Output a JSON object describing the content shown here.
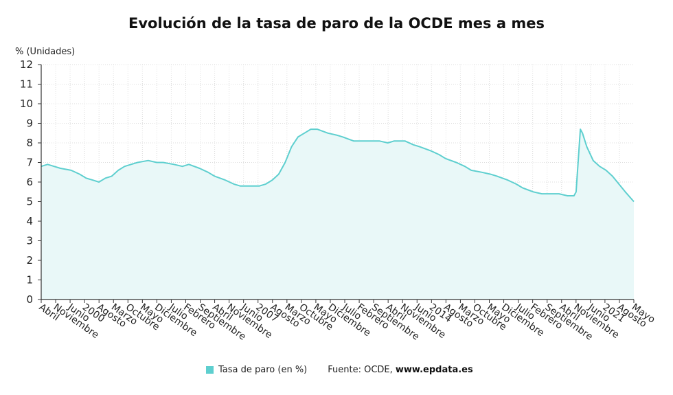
{
  "header": {
    "title": "Evolución de la tasa de paro de la OCDE mes a mes",
    "unit": "% (Unidades)"
  },
  "legend": {
    "series_label": "Tasa de paro (en %)",
    "source_prefix": "Fuente: OCDE, ",
    "source_site": "www.epdata.es"
  },
  "colors": {
    "line": "#5ecfcf",
    "area": "#e9f8f8",
    "grid": "#dddddd",
    "axis": "#333333"
  },
  "chart_data": {
    "type": "area",
    "title": "Evolución de la tasa de paro de la OCDE mes a mes",
    "ylabel": "% (Unidades)",
    "ylim": [
      0,
      12
    ],
    "yticks": [
      0,
      1,
      2,
      3,
      4,
      5,
      6,
      7,
      8,
      9,
      10,
      11,
      12
    ],
    "xlim": [
      "1999-04",
      "2022-05"
    ],
    "x_tick_labels": [
      "Abril",
      "Noviembre",
      "Junio",
      "2000",
      "Agosto",
      "Marzo",
      "Octubre",
      "Mayo",
      "Diciembre",
      "Julio",
      "Febrero",
      "Septiembre",
      "Abril",
      "Noviembre",
      "Junio",
      "2007",
      "Agosto",
      "Marzo",
      "Octubre",
      "Mayo",
      "Diciembre",
      "Julio",
      "Febrero",
      "Septiembre",
      "Abril",
      "Noviembre",
      "Junio",
      "2014",
      "Agosto",
      "Marzo",
      "Octubre",
      "Mayo",
      "Diciembre",
      "Julio",
      "Febrero",
      "Septiembre",
      "Abril",
      "Noviembre",
      "Junio",
      "2021",
      "Agosto",
      "Mayo"
    ],
    "grid": true,
    "legend_position": "bottom",
    "series": [
      {
        "name": "Tasa de paro (en %)",
        "points": [
          [
            "1999-04",
            6.8
          ],
          [
            "1999-07",
            6.9
          ],
          [
            "1999-10",
            6.8
          ],
          [
            "2000-01",
            6.7
          ],
          [
            "2000-06",
            6.6
          ],
          [
            "2000-10",
            6.4
          ],
          [
            "2001-01",
            6.2
          ],
          [
            "2001-04",
            6.1
          ],
          [
            "2001-07",
            6.0
          ],
          [
            "2001-10",
            6.2
          ],
          [
            "2002-01",
            6.3
          ],
          [
            "2002-04",
            6.6
          ],
          [
            "2002-07",
            6.8
          ],
          [
            "2002-10",
            6.9
          ],
          [
            "2003-01",
            7.0
          ],
          [
            "2003-06",
            7.1
          ],
          [
            "2003-10",
            7.0
          ],
          [
            "2004-01",
            7.0
          ],
          [
            "2004-06",
            6.9
          ],
          [
            "2004-10",
            6.8
          ],
          [
            "2005-01",
            6.9
          ],
          [
            "2005-06",
            6.7
          ],
          [
            "2005-10",
            6.5
          ],
          [
            "2006-01",
            6.3
          ],
          [
            "2006-06",
            6.1
          ],
          [
            "2006-10",
            5.9
          ],
          [
            "2007-01",
            5.8
          ],
          [
            "2007-06",
            5.8
          ],
          [
            "2007-10",
            5.8
          ],
          [
            "2008-01",
            5.9
          ],
          [
            "2008-04",
            6.1
          ],
          [
            "2008-07",
            6.4
          ],
          [
            "2008-10",
            7.0
          ],
          [
            "2009-01",
            7.8
          ],
          [
            "2009-04",
            8.3
          ],
          [
            "2009-07",
            8.5
          ],
          [
            "2009-10",
            8.7
          ],
          [
            "2010-01",
            8.7
          ],
          [
            "2010-06",
            8.5
          ],
          [
            "2010-10",
            8.4
          ],
          [
            "2011-01",
            8.3
          ],
          [
            "2011-06",
            8.1
          ],
          [
            "2011-10",
            8.1
          ],
          [
            "2012-01",
            8.1
          ],
          [
            "2012-06",
            8.1
          ],
          [
            "2012-10",
            8.0
          ],
          [
            "2013-01",
            8.1
          ],
          [
            "2013-06",
            8.1
          ],
          [
            "2013-10",
            7.9
          ],
          [
            "2014-01",
            7.8
          ],
          [
            "2014-06",
            7.6
          ],
          [
            "2014-10",
            7.4
          ],
          [
            "2015-01",
            7.2
          ],
          [
            "2015-06",
            7.0
          ],
          [
            "2015-10",
            6.8
          ],
          [
            "2016-01",
            6.6
          ],
          [
            "2016-06",
            6.5
          ],
          [
            "2016-10",
            6.4
          ],
          [
            "2017-01",
            6.3
          ],
          [
            "2017-06",
            6.1
          ],
          [
            "2017-10",
            5.9
          ],
          [
            "2018-01",
            5.7
          ],
          [
            "2018-06",
            5.5
          ],
          [
            "2018-10",
            5.4
          ],
          [
            "2019-01",
            5.4
          ],
          [
            "2019-06",
            5.4
          ],
          [
            "2019-10",
            5.3
          ],
          [
            "2020-01",
            5.3
          ],
          [
            "2020-02",
            5.5
          ],
          [
            "2020-04",
            8.7
          ],
          [
            "2020-05",
            8.5
          ],
          [
            "2020-07",
            7.8
          ],
          [
            "2020-10",
            7.1
          ],
          [
            "2021-01",
            6.8
          ],
          [
            "2021-04",
            6.6
          ],
          [
            "2021-07",
            6.3
          ],
          [
            "2021-10",
            5.9
          ],
          [
            "2022-01",
            5.5
          ],
          [
            "2022-05",
            5.0
          ]
        ]
      }
    ]
  }
}
